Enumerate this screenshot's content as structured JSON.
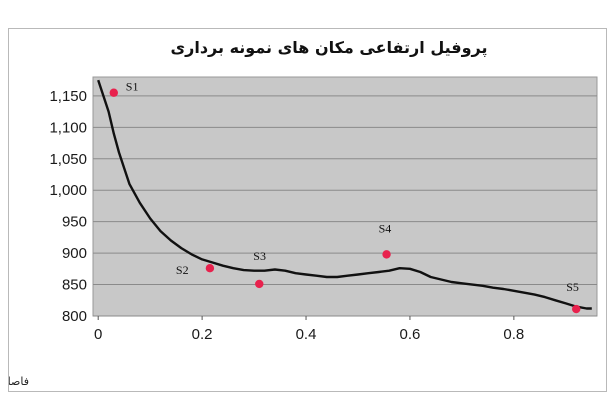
{
  "chart_data": {
    "type": "line",
    "title": "پروفیل ارتفاعی مکان های نمونه برداری",
    "xlabel": "فاصله سیدوریل",
    "ylabel": "",
    "xlim": [
      -0.01,
      0.96
    ],
    "ylim": [
      800,
      1180
    ],
    "xticks": [
      "0",
      "0.2",
      "0.4",
      "0.6",
      "0.8"
    ],
    "xtick_values": [
      0,
      0.2,
      0.4,
      0.6,
      0.8
    ],
    "yticks": [
      "800",
      "850",
      "900",
      "950",
      "1,000",
      "1,050",
      "1,100",
      "1,150"
    ],
    "ytick_values": [
      800,
      850,
      900,
      950,
      1000,
      1050,
      1100,
      1150
    ],
    "grid": "horizontal",
    "series": [
      {
        "x": [
          0.0,
          0.01,
          0.02,
          0.03,
          0.04,
          0.05,
          0.06,
          0.08,
          0.1,
          0.12,
          0.14,
          0.16,
          0.18,
          0.2,
          0.22,
          0.24,
          0.26,
          0.28,
          0.3,
          0.32,
          0.34,
          0.36,
          0.38,
          0.4,
          0.42,
          0.44,
          0.46,
          0.48,
          0.5,
          0.52,
          0.54,
          0.56,
          0.58,
          0.6,
          0.62,
          0.64,
          0.66,
          0.68,
          0.7,
          0.72,
          0.74,
          0.76,
          0.78,
          0.8,
          0.82,
          0.84,
          0.86,
          0.88,
          0.9,
          0.92,
          0.94,
          0.95
        ],
        "y": [
          1175,
          1150,
          1125,
          1090,
          1060,
          1035,
          1010,
          980,
          955,
          935,
          920,
          908,
          898,
          890,
          885,
          880,
          876,
          873,
          872,
          872,
          874,
          872,
          868,
          866,
          864,
          862,
          862,
          864,
          866,
          868,
          870,
          872,
          876,
          875,
          870,
          862,
          858,
          854,
          852,
          850,
          848,
          845,
          843,
          840,
          837,
          834,
          830,
          825,
          820,
          815,
          812,
          812
        ]
      }
    ],
    "points": [
      {
        "label": "S1",
        "x": 0.03,
        "y": 1155
      },
      {
        "label": "S2",
        "x": 0.215,
        "y": 876
      },
      {
        "label": "S3",
        "x": 0.31,
        "y": 851
      },
      {
        "label": "S4",
        "x": 0.555,
        "y": 898
      },
      {
        "label": "S5",
        "x": 0.92,
        "y": 811
      }
    ],
    "colors": {
      "plot_bg": "#c8c8c8",
      "line": "#111111",
      "marker": "#e8214d"
    }
  }
}
